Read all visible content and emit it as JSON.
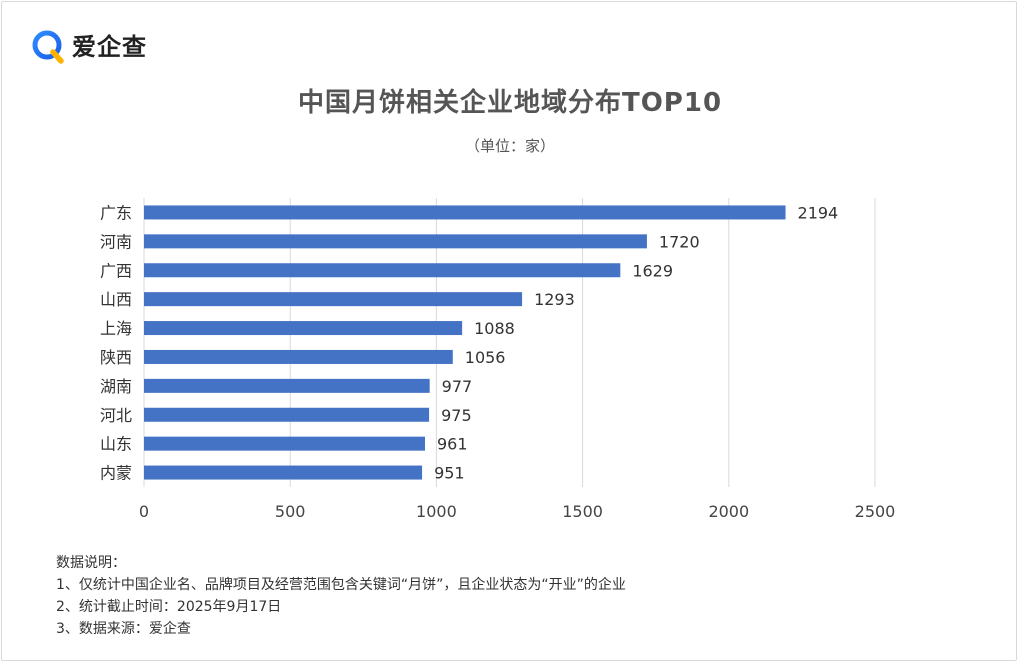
{
  "brand": {
    "name": "爱企查"
  },
  "chart_data": {
    "type": "bar",
    "orientation": "horizontal",
    "title": "中国月饼相关企业地域分布TOP10",
    "subtitle": "（单位：家）",
    "categories": [
      "广东",
      "河南",
      "广西",
      "山西",
      "上海",
      "陕西",
      "湖南",
      "河北",
      "山东",
      "内蒙"
    ],
    "values": [
      2194,
      1720,
      1629,
      1293,
      1088,
      1056,
      977,
      975,
      961,
      951
    ],
    "xlim": [
      0,
      2500
    ],
    "xticks": [
      0,
      500,
      1000,
      1500,
      2000,
      2500
    ],
    "grid": true,
    "bar_color": "#4472c4",
    "legend": "none"
  },
  "notes": {
    "heading": "数据说明：",
    "items": [
      "1、仅统计中国企业名、品牌项目及经营范围包含关键词“月饼”，且企业状态为“开业”的企业",
      "2、统计截止时间：2025年9月17日",
      "3、数据来源：爱企查"
    ]
  }
}
